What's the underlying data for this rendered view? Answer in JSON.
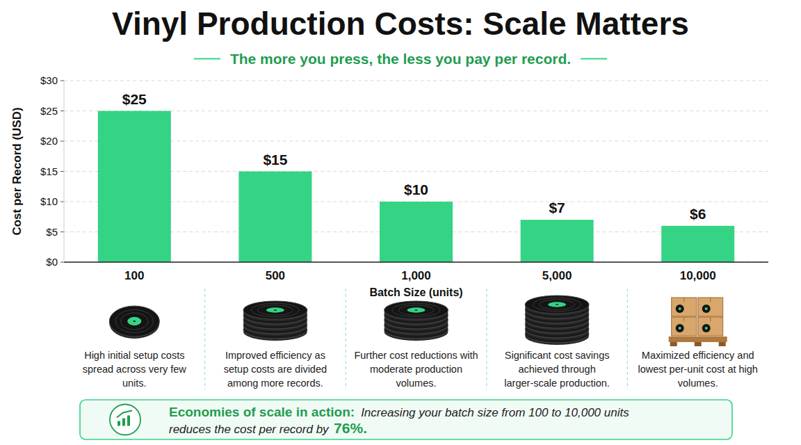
{
  "chart_data": {
    "type": "bar",
    "title": "Vinyl Production Costs: Scale Matters",
    "subtitle": "The more you press, the less you pay per record.",
    "x_label": "Batch Size (units)",
    "y_label": "Cost per Record (USD)",
    "categories": [
      "100",
      "500",
      "1,000",
      "5,000",
      "10,000"
    ],
    "values": [
      25,
      15,
      10,
      7,
      6
    ],
    "value_labels": [
      "$25",
      "$15",
      "$10",
      "$7",
      "$6"
    ],
    "data_labels": true,
    "color": "#35d384",
    "ylim": [
      0,
      30
    ],
    "yticks": [
      {
        "value": 0,
        "label": "$0"
      },
      {
        "value": 5,
        "label": "$5"
      },
      {
        "value": 10,
        "label": "$10"
      },
      {
        "value": 15,
        "label": "$15"
      },
      {
        "value": 20,
        "label": "$20"
      },
      {
        "value": 25,
        "label": "$25"
      },
      {
        "value": 30,
        "label": "$30"
      }
    ],
    "grid": true,
    "annotations": [
      "High initial setup costs spread across very few units.",
      "Improved efficiency as setup costs are divided among more records.",
      "Further cost reductions with moderate production volumes.",
      "Significant cost savings achieved through larger-scale production.",
      "Maximized efficiency and lowest per-unit cost at high volumes."
    ],
    "callout": {
      "heading": "Economies of scale in action:",
      "text_lines": [
        "Increasing your batch size from 100 to 10,000 units",
        "reduces the cost per record by"
      ],
      "highlight": "76%."
    }
  }
}
